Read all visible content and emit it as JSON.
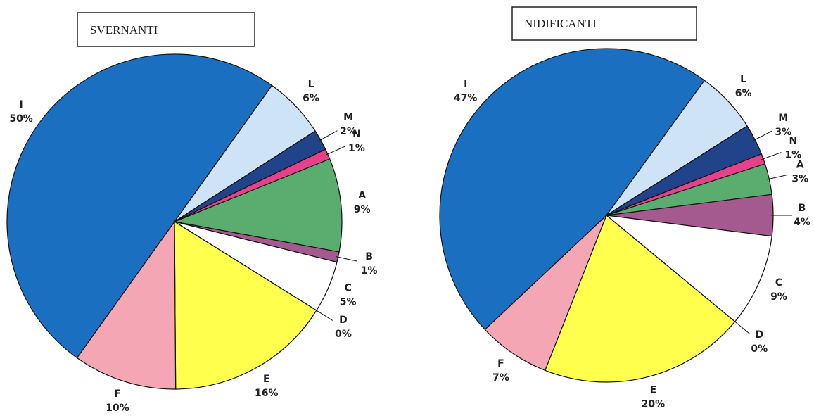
{
  "chart_data": [
    {
      "type": "pie",
      "title": "SVERNANTI",
      "categories": [
        "A",
        "B",
        "C",
        "D",
        "E",
        "F",
        "I",
        "L",
        "M",
        "N"
      ],
      "values": [
        9,
        1,
        5,
        0,
        16,
        10,
        50,
        6,
        2,
        1
      ],
      "value_labels": [
        "9%",
        "1%",
        "5%",
        "0%",
        "16%",
        "10%",
        "50%",
        "6%",
        "2%",
        "1%"
      ],
      "colors": [
        "#5aad6e",
        "#a45a8e",
        "#ffffff",
        "#ffffff",
        "#ffff4d",
        "#f4a6b4",
        "#1a6fc0",
        "#cfe3f7",
        "#21438a",
        "#e8408a"
      ]
    },
    {
      "type": "pie",
      "title": "NIDIFICANTI",
      "categories": [
        "A",
        "B",
        "C",
        "D",
        "E",
        "F",
        "I",
        "L",
        "M",
        "N"
      ],
      "values": [
        3,
        4,
        9,
        0,
        20,
        7,
        47,
        6,
        3,
        1
      ],
      "value_labels": [
        "3%",
        "4%",
        "9%",
        "0%",
        "20%",
        "7%",
        "47%",
        "6%",
        "3%",
        "1%"
      ],
      "colors": [
        "#5aad6e",
        "#a45a8e",
        "#ffffff",
        "#ffffff",
        "#ffff4d",
        "#f4a6b4",
        "#1a6fc0",
        "#cfe3f7",
        "#21438a",
        "#e8408a"
      ]
    }
  ]
}
